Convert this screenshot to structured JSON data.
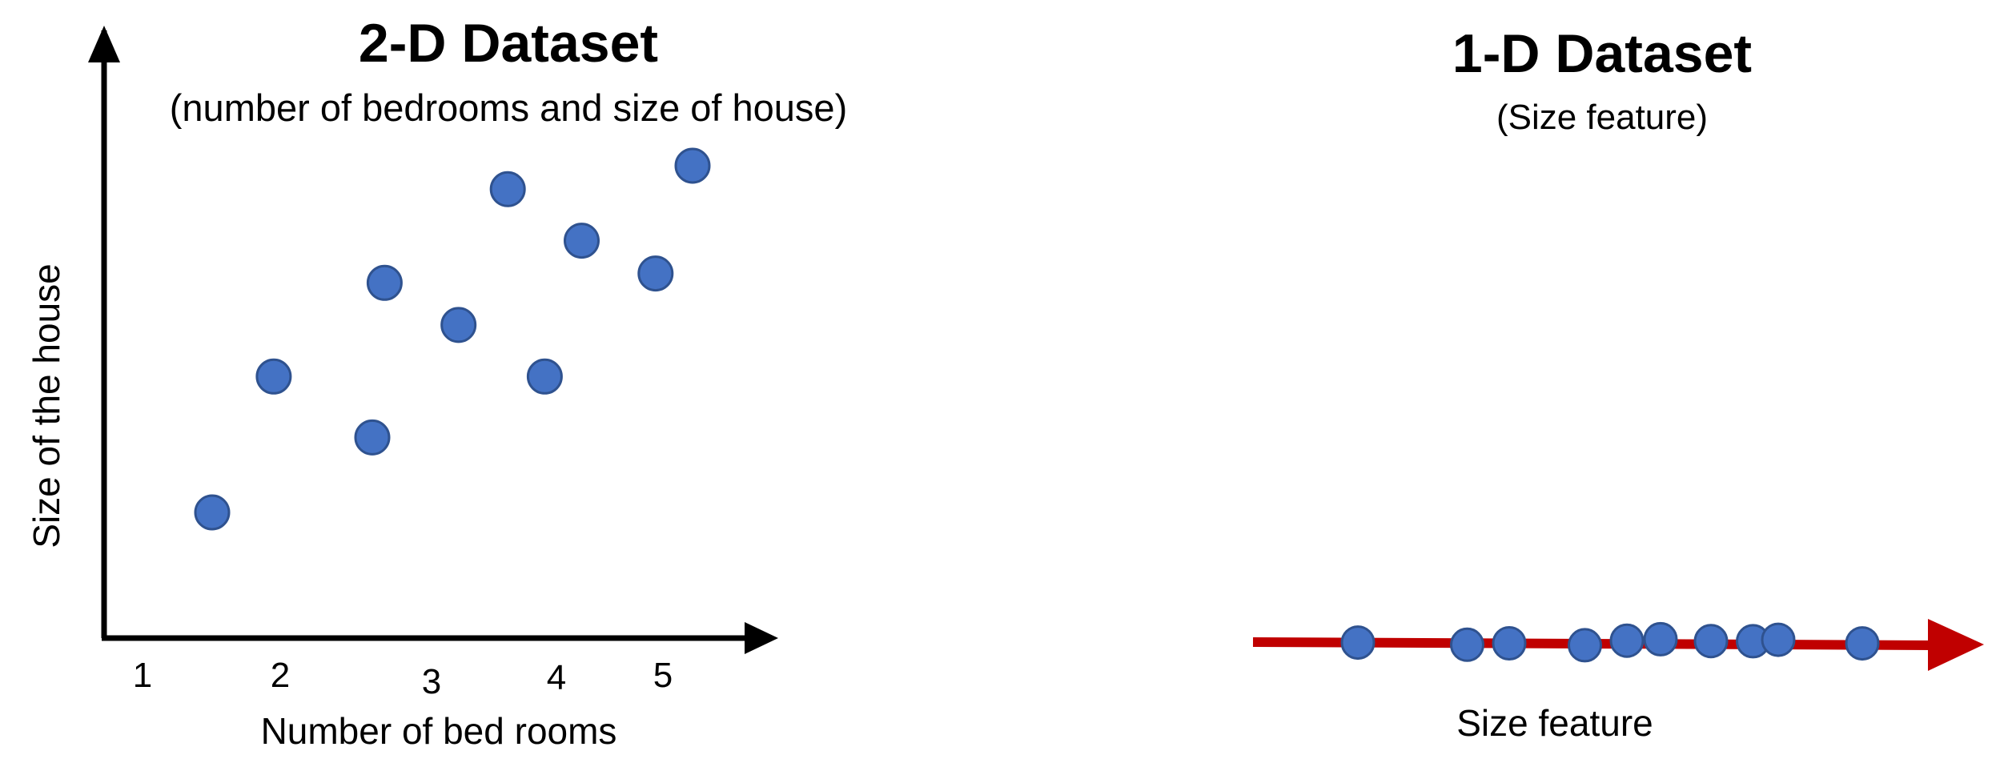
{
  "colors": {
    "point_fill": "#4472C4",
    "point_stroke": "#2F528F",
    "axis": "#000000",
    "projection_line": "#C00000"
  },
  "chart_data": [
    {
      "type": "scatter",
      "title": "2-D Dataset",
      "subtitle": "(number of bedrooms and size of house)",
      "xlabel": "Number of bed rooms",
      "ylabel": "Size of the house",
      "x_ticks": [
        "1",
        "2",
        "3",
        "4",
        "5"
      ],
      "xlim": [
        0.5,
        6
      ],
      "ylim": [
        0,
        10
      ],
      "grid": false,
      "points": [
        {
          "x": 1.5,
          "y": 2.6
        },
        {
          "x": 2.0,
          "y": 5.5
        },
        {
          "x": 2.8,
          "y": 4.2
        },
        {
          "x": 2.9,
          "y": 7.5
        },
        {
          "x": 3.5,
          "y": 6.6
        },
        {
          "x": 3.9,
          "y": 9.5
        },
        {
          "x": 4.2,
          "y": 5.5
        },
        {
          "x": 4.5,
          "y": 8.4
        },
        {
          "x": 5.1,
          "y": 7.7
        },
        {
          "x": 5.4,
          "y": 10.0
        }
      ]
    },
    {
      "type": "scatter",
      "title": "1-D Dataset",
      "subtitle": "(Size feature)",
      "xlabel": "Size feature",
      "ylabel": "",
      "grid": false,
      "xlim": [
        0,
        10
      ],
      "points": [
        {
          "x": 1.0
        },
        {
          "x": 2.3
        },
        {
          "x": 2.8
        },
        {
          "x": 3.7
        },
        {
          "x": 4.2
        },
        {
          "x": 4.6
        },
        {
          "x": 5.2
        },
        {
          "x": 5.7
        },
        {
          "x": 6.0
        },
        {
          "x": 7.0
        }
      ]
    }
  ]
}
